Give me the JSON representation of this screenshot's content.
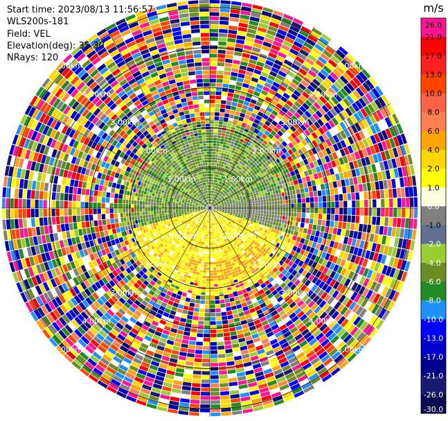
{
  "header": {
    "start_time": "Start time: 2023/08/13 11:56:57",
    "instrument": "WLS200s-181",
    "field": "Field: VEL",
    "elevation": "Elevation(deg): 35.30",
    "nrays": "NRays: 120"
  },
  "chart_data": {
    "type": "heatmap",
    "projection": "polar-ppi",
    "title": "",
    "range_rings": [
      {
        "radius_km": 1.0,
        "label": "1.00km"
      },
      {
        "radius_km": 2.0,
        "label": "2.00km"
      },
      {
        "radius_km": 3.0,
        "label": "3.00km"
      },
      {
        "radius_km": 4.0,
        "label": "4.00km"
      },
      {
        "radius_km": 5.0,
        "label": "5.00km"
      }
    ],
    "max_range_km": 5.2,
    "colorbar": {
      "unit": "m/s",
      "ticks": [
        "26.0",
        "21.0",
        "17.0",
        "13.0",
        "10.0",
        "8.0",
        "6.0",
        "4.0",
        "2.0",
        "1.0",
        "0.0",
        "-1.0",
        "-2.0",
        "-4.0",
        "-6.0",
        "-8.0",
        "-10.0",
        "-13.0",
        "-17.0",
        "-21.0",
        "-26.0",
        "-30.0"
      ],
      "colors": [
        "#ff1493",
        "#ff0000",
        "#ff2020",
        "#ff4500",
        "#ff6347",
        "#ff7f50",
        "#ffa500",
        "#ffd700",
        "#ffff00",
        "#ffffe0",
        "#808080",
        "#607090",
        "#9acd32",
        "#6b8e23",
        "#228b22",
        "#1e90ff",
        "#0000ff",
        "#0000cd",
        "#00008b",
        "#191970",
        "#0a0a50"
      ]
    },
    "regions": [
      {
        "name": "inner-north",
        "range_km": [
          0,
          2.2
        ],
        "azimuth_deg": [
          250,
          110
        ],
        "dominant": "-4.0 to -6.0"
      },
      {
        "name": "inner-south",
        "range_km": [
          0,
          2.2
        ],
        "azimuth_deg": [
          110,
          250
        ],
        "dominant": "2.0 to 4.0"
      },
      {
        "name": "outer-noise",
        "range_km": [
          2.2,
          5.2
        ],
        "azimuth_deg": [
          0,
          360
        ],
        "dominant": "noise"
      }
    ]
  }
}
